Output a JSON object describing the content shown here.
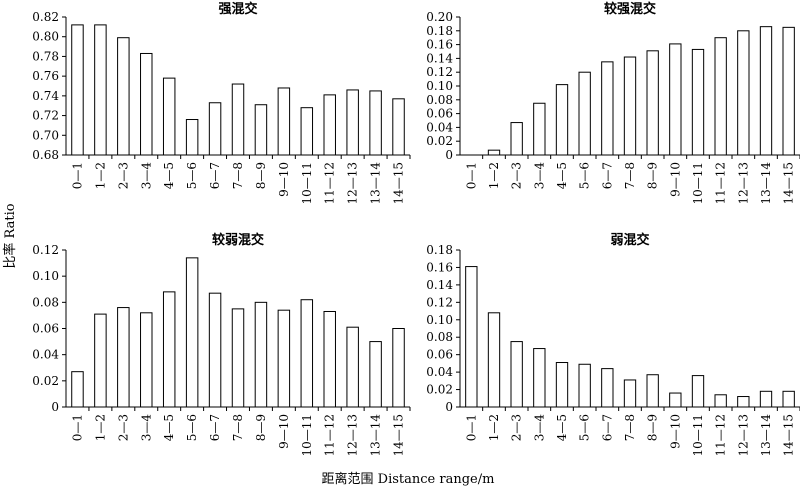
{
  "figure": {
    "ylabel": "比率 Ratio",
    "xlabel": "距离范围 Distance range/m"
  },
  "chart_data": [
    {
      "type": "bar",
      "title": "强混交",
      "categories": [
        "0—1",
        "1—2",
        "2—3",
        "3—4",
        "4—5",
        "5—6",
        "6—7",
        "7—8",
        "8—9",
        "9—10",
        "10—11",
        "11—12",
        "12—13",
        "13—14",
        "14—15"
      ],
      "values": [
        0.812,
        0.812,
        0.799,
        0.783,
        0.758,
        0.716,
        0.733,
        0.752,
        0.731,
        0.748,
        0.728,
        0.741,
        0.746,
        0.745,
        0.737
      ],
      "ylim": [
        0.68,
        0.82
      ],
      "yticks": [
        "0.68",
        "0.70",
        "0.72",
        "0.74",
        "0.76",
        "0.78",
        "0.80",
        "0.82"
      ]
    },
    {
      "type": "bar",
      "title": "较强混交",
      "categories": [
        "0—1",
        "1—2",
        "2—3",
        "3—4",
        "4—5",
        "5—6",
        "6—7",
        "7—8",
        "8—9",
        "9—10",
        "10—11",
        "11—12",
        "12—13",
        "13—14",
        "14—15"
      ],
      "values": [
        0.0,
        0.007,
        0.047,
        0.075,
        0.102,
        0.12,
        0.135,
        0.142,
        0.151,
        0.161,
        0.153,
        0.17,
        0.18,
        0.186,
        0.185
      ],
      "ylim": [
        0,
        0.2
      ],
      "yticks": [
        "0",
        "0.02",
        "0.04",
        "0.06",
        "0.08",
        "0.10",
        "0.12",
        "0.14",
        "0.16",
        "0.18",
        "0.20"
      ]
    },
    {
      "type": "bar",
      "title": "较弱混交",
      "categories": [
        "0—1",
        "1—2",
        "2—3",
        "3—4",
        "4—5",
        "5—6",
        "6—7",
        "7—8",
        "8—9",
        "9—10",
        "10—11",
        "11—12",
        "12—13",
        "13—14",
        "14—15"
      ],
      "values": [
        0.027,
        0.071,
        0.076,
        0.072,
        0.088,
        0.114,
        0.087,
        0.075,
        0.08,
        0.074,
        0.082,
        0.073,
        0.061,
        0.05,
        0.06
      ],
      "ylim": [
        0,
        0.12
      ],
      "yticks": [
        "0",
        "0.02",
        "0.04",
        "0.06",
        "0.08",
        "0.10",
        "0.12"
      ]
    },
    {
      "type": "bar",
      "title": "弱混交",
      "categories": [
        "0—1",
        "1—2",
        "2—3",
        "3—4",
        "4—5",
        "5—6",
        "6—7",
        "7—8",
        "8—9",
        "9—10",
        "10—11",
        "11—12",
        "12—13",
        "13—14",
        "14—15"
      ],
      "values": [
        0.161,
        0.108,
        0.075,
        0.067,
        0.051,
        0.049,
        0.044,
        0.031,
        0.037,
        0.016,
        0.036,
        0.014,
        0.012,
        0.018,
        0.018
      ],
      "ylim": [
        0,
        0.18
      ],
      "yticks": [
        "0",
        "0.02",
        "0.04",
        "0.06",
        "0.08",
        "0.10",
        "0.12",
        "0.14",
        "0.16",
        "0.18"
      ]
    }
  ]
}
